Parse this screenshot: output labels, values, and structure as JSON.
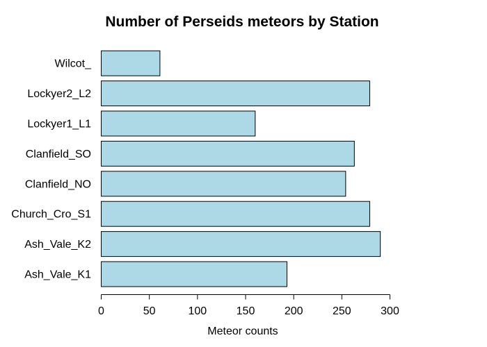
{
  "chart_data": {
    "type": "bar",
    "orientation": "horizontal",
    "title": "Number of Perseids meteors by Station",
    "xlabel": "Meteor counts",
    "ylabel": "",
    "categories": [
      "Ash_Vale_K1",
      "Ash_Vale_K2",
      "Church_Cro_S1",
      "Clanfield_NO",
      "Clanfield_SO",
      "Lockyer1_L1",
      "Lockyer2_L2",
      "Wilcot_"
    ],
    "values": [
      193,
      290,
      279,
      254,
      263,
      160,
      279,
      61
    ],
    "xlim": [
      0,
      300
    ],
    "ticks": [
      0,
      50,
      100,
      150,
      200,
      250,
      300
    ],
    "grid": false,
    "bar_color": "#add8e6",
    "edge_color": "#000000"
  }
}
